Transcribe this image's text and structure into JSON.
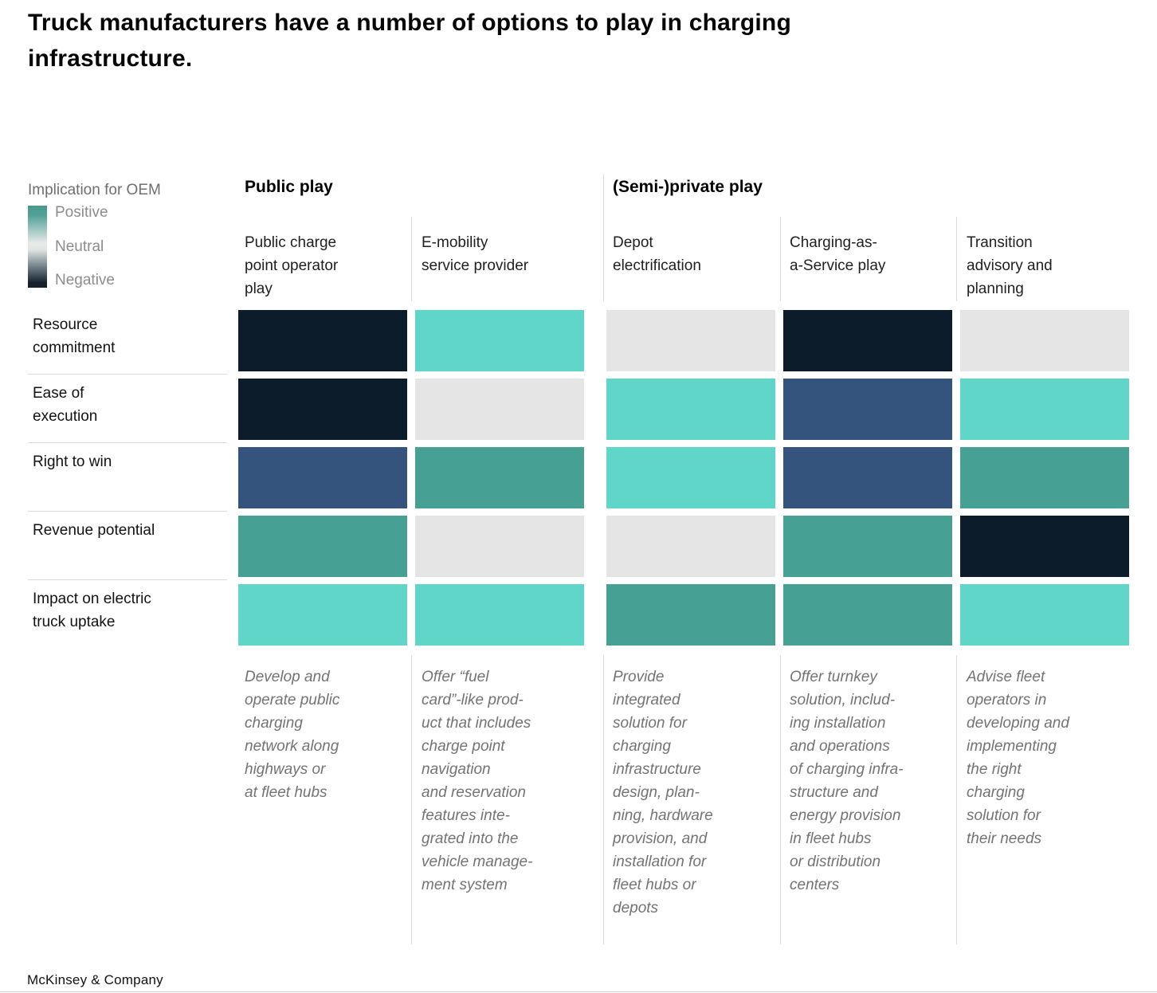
{
  "title": "Truck manufacturers have a number of options to play in charging\ninfrastructure.",
  "footer": "McKinsey & Company",
  "legend": {
    "title": "Implication for OEM",
    "labels": [
      "Positive",
      "Neutral",
      "Negative"
    ],
    "gradient_colors": [
      "#4a998f",
      "#e9ebea",
      "#16212c"
    ]
  },
  "chart_data": {
    "type": "heatmap",
    "title": "Truck manufacturers have a number of options to play in charging infrastructure.",
    "legend_title": "Implication for OEM",
    "scale": [
      "Positive",
      "Neutral",
      "Negative"
    ],
    "column_groups": [
      {
        "label": "Public play",
        "columns": [
          {
            "label": "Public charge\npoint operator\nplay",
            "description": "Develop and\noperate public\ncharging\nnetwork along\nhighways or\nat fleet hubs"
          },
          {
            "label": "E-mobility\nservice provider",
            "description": "Offer “fuel\ncard”-like prod-\nuct that includes\ncharge point\nnavigation\nand reservation\nfeatures inte-\ngrated into the\nvehicle manage-\nment system"
          }
        ]
      },
      {
        "label": "(Semi-)private play",
        "columns": [
          {
            "label": "Depot\nelectrification",
            "description": "Provide\nintegrated\nsolution for\ncharging\ninfrastructure\ndesign, plan-\nning, hardware\nprovision, and\ninstallation for\nfleet hubs or\ndepots"
          },
          {
            "label": "Charging-as-\na-Service play",
            "description": "Offer turnkey\nsolution, includ-\ning installation\nand operations\nof charging infra-\nstructure and\nenergy provision\nin fleet hubs\nor distribution\ncenters"
          },
          {
            "label": "Transition\nadvisory and\nplanning",
            "description": "Advise fleet\noperators in\ndeveloping and\nimplementing\nthe right\ncharging\nsolution for\ntheir needs"
          }
        ]
      }
    ],
    "rows": [
      "Resource\ncommitment",
      "Ease of\nexecution",
      "Right to win",
      "Revenue potential",
      "Impact on electric\ntruck uptake"
    ],
    "values": [
      [
        "negative",
        "very_positive",
        "neutral",
        "negative",
        "neutral"
      ],
      [
        "negative",
        "neutral",
        "very_positive",
        "somewhat_negative",
        "very_positive"
      ],
      [
        "somewhat_negative",
        "positive",
        "very_positive",
        "somewhat_negative",
        "positive"
      ],
      [
        "positive",
        "neutral",
        "neutral",
        "positive",
        "negative"
      ],
      [
        "very_positive",
        "very_positive",
        "positive",
        "positive",
        "very_positive"
      ]
    ],
    "palette": {
      "very_positive": "#5fd6c8",
      "positive": "#47a094",
      "neutral": "#e5e5e5",
      "somewhat_negative": "#35547d",
      "negative": "#0d1c2b"
    }
  }
}
